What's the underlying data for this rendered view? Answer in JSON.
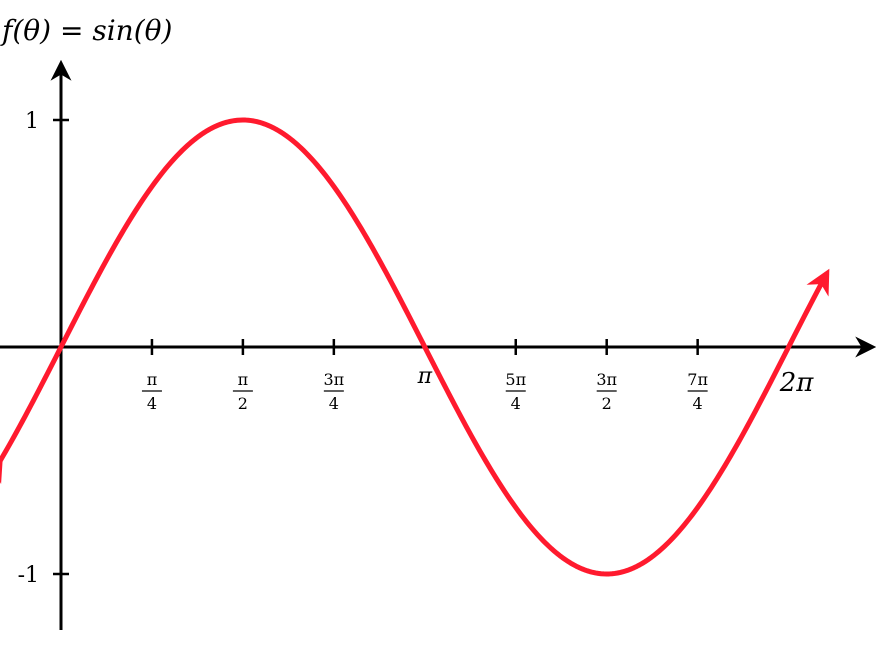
{
  "chart_data": {
    "type": "line",
    "title": "f(θ) = sin(θ)",
    "function": "sin",
    "x_domain": [
      -0.5236,
      6.6148
    ],
    "ylim": [
      -1.25,
      1.25
    ],
    "xticks": [
      {
        "value": 0.7854,
        "num": "π",
        "den": "4"
      },
      {
        "value": 1.5708,
        "num": "π",
        "den": "2"
      },
      {
        "value": 2.3562,
        "num": "3π",
        "den": "4"
      },
      {
        "value": 3.1416,
        "label": "π"
      },
      {
        "value": 3.927,
        "num": "5π",
        "den": "4"
      },
      {
        "value": 4.7124,
        "num": "3π",
        "den": "2"
      },
      {
        "value": 5.4978,
        "num": "7π",
        "den": "4"
      },
      {
        "value": 6.2832,
        "label": "2π"
      }
    ],
    "yticks": [
      {
        "value": 1,
        "label": "1"
      },
      {
        "value": -1,
        "label": "-1"
      }
    ],
    "curve_color": "#ff1a2e",
    "axis_color": "#000000",
    "grid": false
  }
}
